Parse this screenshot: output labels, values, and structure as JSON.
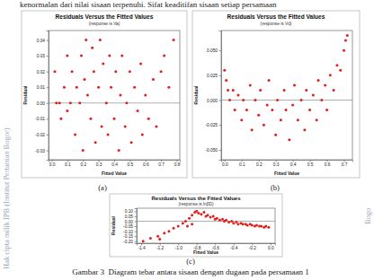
{
  "page_text": "kenormalan dari nilai sisaan terpenuhi. Sifat keaditifan sisaan setiap persamaan",
  "watermark": "Hak cipta milik IPB (Institut Pertanian Bogor)",
  "edge_text": "Bogo",
  "panel_labels": [
    "(a)",
    "(b)",
    "(c)"
  ],
  "caption": "Gambar 3  Diagram tebar antara sisaan dengan dugaan pada persamaan 1",
  "chart_data": [
    {
      "type": "scatter",
      "title": "Residuals Versus the Fitted Values",
      "subtitle": "(response is Va)",
      "x_label": "Fitted Value",
      "y_label": "Residual",
      "color": "#e0201c",
      "marker": "circle",
      "reference_line": 0,
      "xlim": [
        -0.02,
        0.82
      ],
      "ylim": [
        -0.036,
        0.046
      ],
      "xticks": [
        {
          "value": 0,
          "label": "0.0"
        },
        0.1,
        0.2,
        0.3,
        0.4,
        0.5,
        0.6,
        0.7,
        0.8
      ],
      "yticks": [
        -0.03,
        -0.02,
        -0.01,
        {
          "value": 0,
          "label": "0.00"
        },
        0.01,
        0.02,
        0.03,
        0.04
      ],
      "x": [
        0.02,
        0.03,
        0.05,
        0.06,
        0.08,
        0.1,
        0.1,
        0.12,
        0.13,
        0.15,
        0.16,
        0.18,
        0.19,
        0.2,
        0.21,
        0.22,
        0.23,
        0.25,
        0.26,
        0.27,
        0.28,
        0.3,
        0.31,
        0.32,
        0.33,
        0.35,
        0.36,
        0.37,
        0.38,
        0.4,
        0.41,
        0.43,
        0.44,
        0.45,
        0.47,
        0.48,
        0.5,
        0.51,
        0.53,
        0.55,
        0.57,
        0.58,
        0.6,
        0.62,
        0.65,
        0.67,
        0.7,
        0.72,
        0.75,
        0.78
      ],
      "values": [
        0.02,
        0.0,
        0.0,
        -0.01,
        0.01,
        0.03,
        -0.005,
        0.0,
        0.02,
        -0.02,
        0.01,
        0.0,
        0.03,
        -0.03,
        0.015,
        0.04,
        0.005,
        -0.01,
        0.035,
        0.02,
        -0.025,
        0.01,
        0.04,
        -0.015,
        0.025,
        0.0,
        -0.02,
        0.03,
        0.01,
        -0.01,
        0.02,
        -0.03,
        0.005,
        0.03,
        -0.015,
        0.0,
        0.02,
        -0.025,
        0.01,
        -0.005,
        0.025,
        -0.02,
        0.005,
        -0.01,
        0.015,
        -0.015,
        0.02,
        0.03,
        0.01,
        0.04
      ]
    },
    {
      "type": "scatter",
      "title": "Residuals Versus the Fitted Values",
      "subtitle": "(response is Vd)",
      "x_label": "Fitted Value",
      "y_label": "Residual",
      "color": "#e0201c",
      "marker": "circle",
      "reference_line": 0,
      "xlim": [
        -0.02,
        0.75
      ],
      "ylim": [
        -0.06,
        0.07
      ],
      "xticks": [
        {
          "value": 0,
          "label": "0.0"
        },
        0.1,
        0.2,
        0.3,
        0.4,
        0.5,
        0.6,
        0.7
      ],
      "yticks": [
        {
          "value": -0.05,
          "label": "-0.050"
        },
        -0.025,
        {
          "value": 0,
          "label": "0.000"
        },
        0.025,
        {
          "value": 0.05,
          "label": "0.050"
        }
      ],
      "x": [
        0.0,
        0.01,
        0.02,
        0.03,
        0.05,
        0.06,
        0.08,
        0.1,
        0.11,
        0.13,
        0.15,
        0.16,
        0.18,
        0.2,
        0.21,
        0.23,
        0.25,
        0.26,
        0.28,
        0.3,
        0.31,
        0.33,
        0.35,
        0.36,
        0.38,
        0.4,
        0.41,
        0.43,
        0.45,
        0.47,
        0.48,
        0.5,
        0.52,
        0.54,
        0.55,
        0.57,
        0.59,
        0.6,
        0.62,
        0.64,
        0.66,
        0.68,
        0.7,
        0.71,
        0.72
      ],
      "values": [
        0.03,
        0.02,
        0.01,
        0.0,
        0.01,
        -0.01,
        0.005,
        -0.02,
        0.0,
        -0.01,
        0.015,
        -0.03,
        0.0,
        -0.015,
        0.01,
        -0.025,
        -0.005,
        0.02,
        -0.01,
        -0.035,
        0.0,
        -0.02,
        0.01,
        -0.01,
        -0.04,
        -0.005,
        0.015,
        -0.02,
        0.0,
        -0.03,
        0.01,
        -0.01,
        0.005,
        -0.02,
        0.02,
        0.0,
        0.015,
        -0.01,
        0.025,
        0.01,
        0.035,
        0.03,
        0.05,
        0.06,
        0.065
      ]
    },
    {
      "type": "scatter",
      "title": "Residuals Versus the Fitted Values",
      "subtitle": "(response is lnβD)",
      "x_label": "Fitted Value",
      "y_label": "Residual",
      "color": "#e0201c",
      "marker": "circle",
      "reference_line": 0,
      "xlim": [
        -1.45,
        0.05
      ],
      "ylim": [
        -0.22,
        0.13
      ],
      "xticks": [
        -1.4,
        -1.2,
        {
          "value": -1,
          "label": "-1.0"
        },
        -0.8,
        -0.6,
        -0.4,
        -0.2,
        {
          "value": 0,
          "label": "0.0"
        }
      ],
      "yticks": [
        {
          "value": -0.2,
          "label": "-0.20"
        },
        -0.15,
        {
          "value": -0.1,
          "label": "-0.10"
        },
        -0.05,
        {
          "value": 0,
          "label": "0.00"
        },
        0.05,
        {
          "value": 0.1,
          "label": "0.10"
        }
      ],
      "x": [
        -1.38,
        -1.3,
        -1.22,
        -1.15,
        -1.1,
        -1.05,
        -1.0,
        -0.95,
        -0.92,
        -0.88,
        -0.85,
        -0.82,
        -0.8,
        -0.78,
        -0.75,
        -0.72,
        -0.7,
        -0.68,
        -0.65,
        -0.62,
        -0.6,
        -0.58,
        -0.55,
        -0.52,
        -0.5,
        -0.48,
        -0.45,
        -0.42,
        -0.4,
        -0.37,
        -0.35,
        -0.32,
        -0.3,
        -0.27,
        -0.25,
        -0.22,
        -0.2,
        -0.17,
        -0.15,
        -0.12,
        -0.1,
        -0.07,
        -0.05,
        -0.02,
        -0.9,
        -0.85,
        -1.2
      ],
      "values": [
        -0.2,
        -0.17,
        -0.15,
        -0.12,
        -0.1,
        -0.07,
        -0.05,
        -0.02,
        0.0,
        0.03,
        0.06,
        0.09,
        0.1,
        0.08,
        0.07,
        0.09,
        0.05,
        0.06,
        0.04,
        0.05,
        0.02,
        0.03,
        0.01,
        0.02,
        0.0,
        0.01,
        -0.01,
        0.0,
        -0.02,
        -0.01,
        -0.03,
        -0.02,
        -0.03,
        -0.03,
        -0.04,
        -0.03,
        -0.04,
        -0.05,
        -0.04,
        -0.05,
        -0.05,
        -0.06,
        -0.05,
        -0.06,
        -0.05,
        -0.03,
        -0.18
      ]
    }
  ]
}
